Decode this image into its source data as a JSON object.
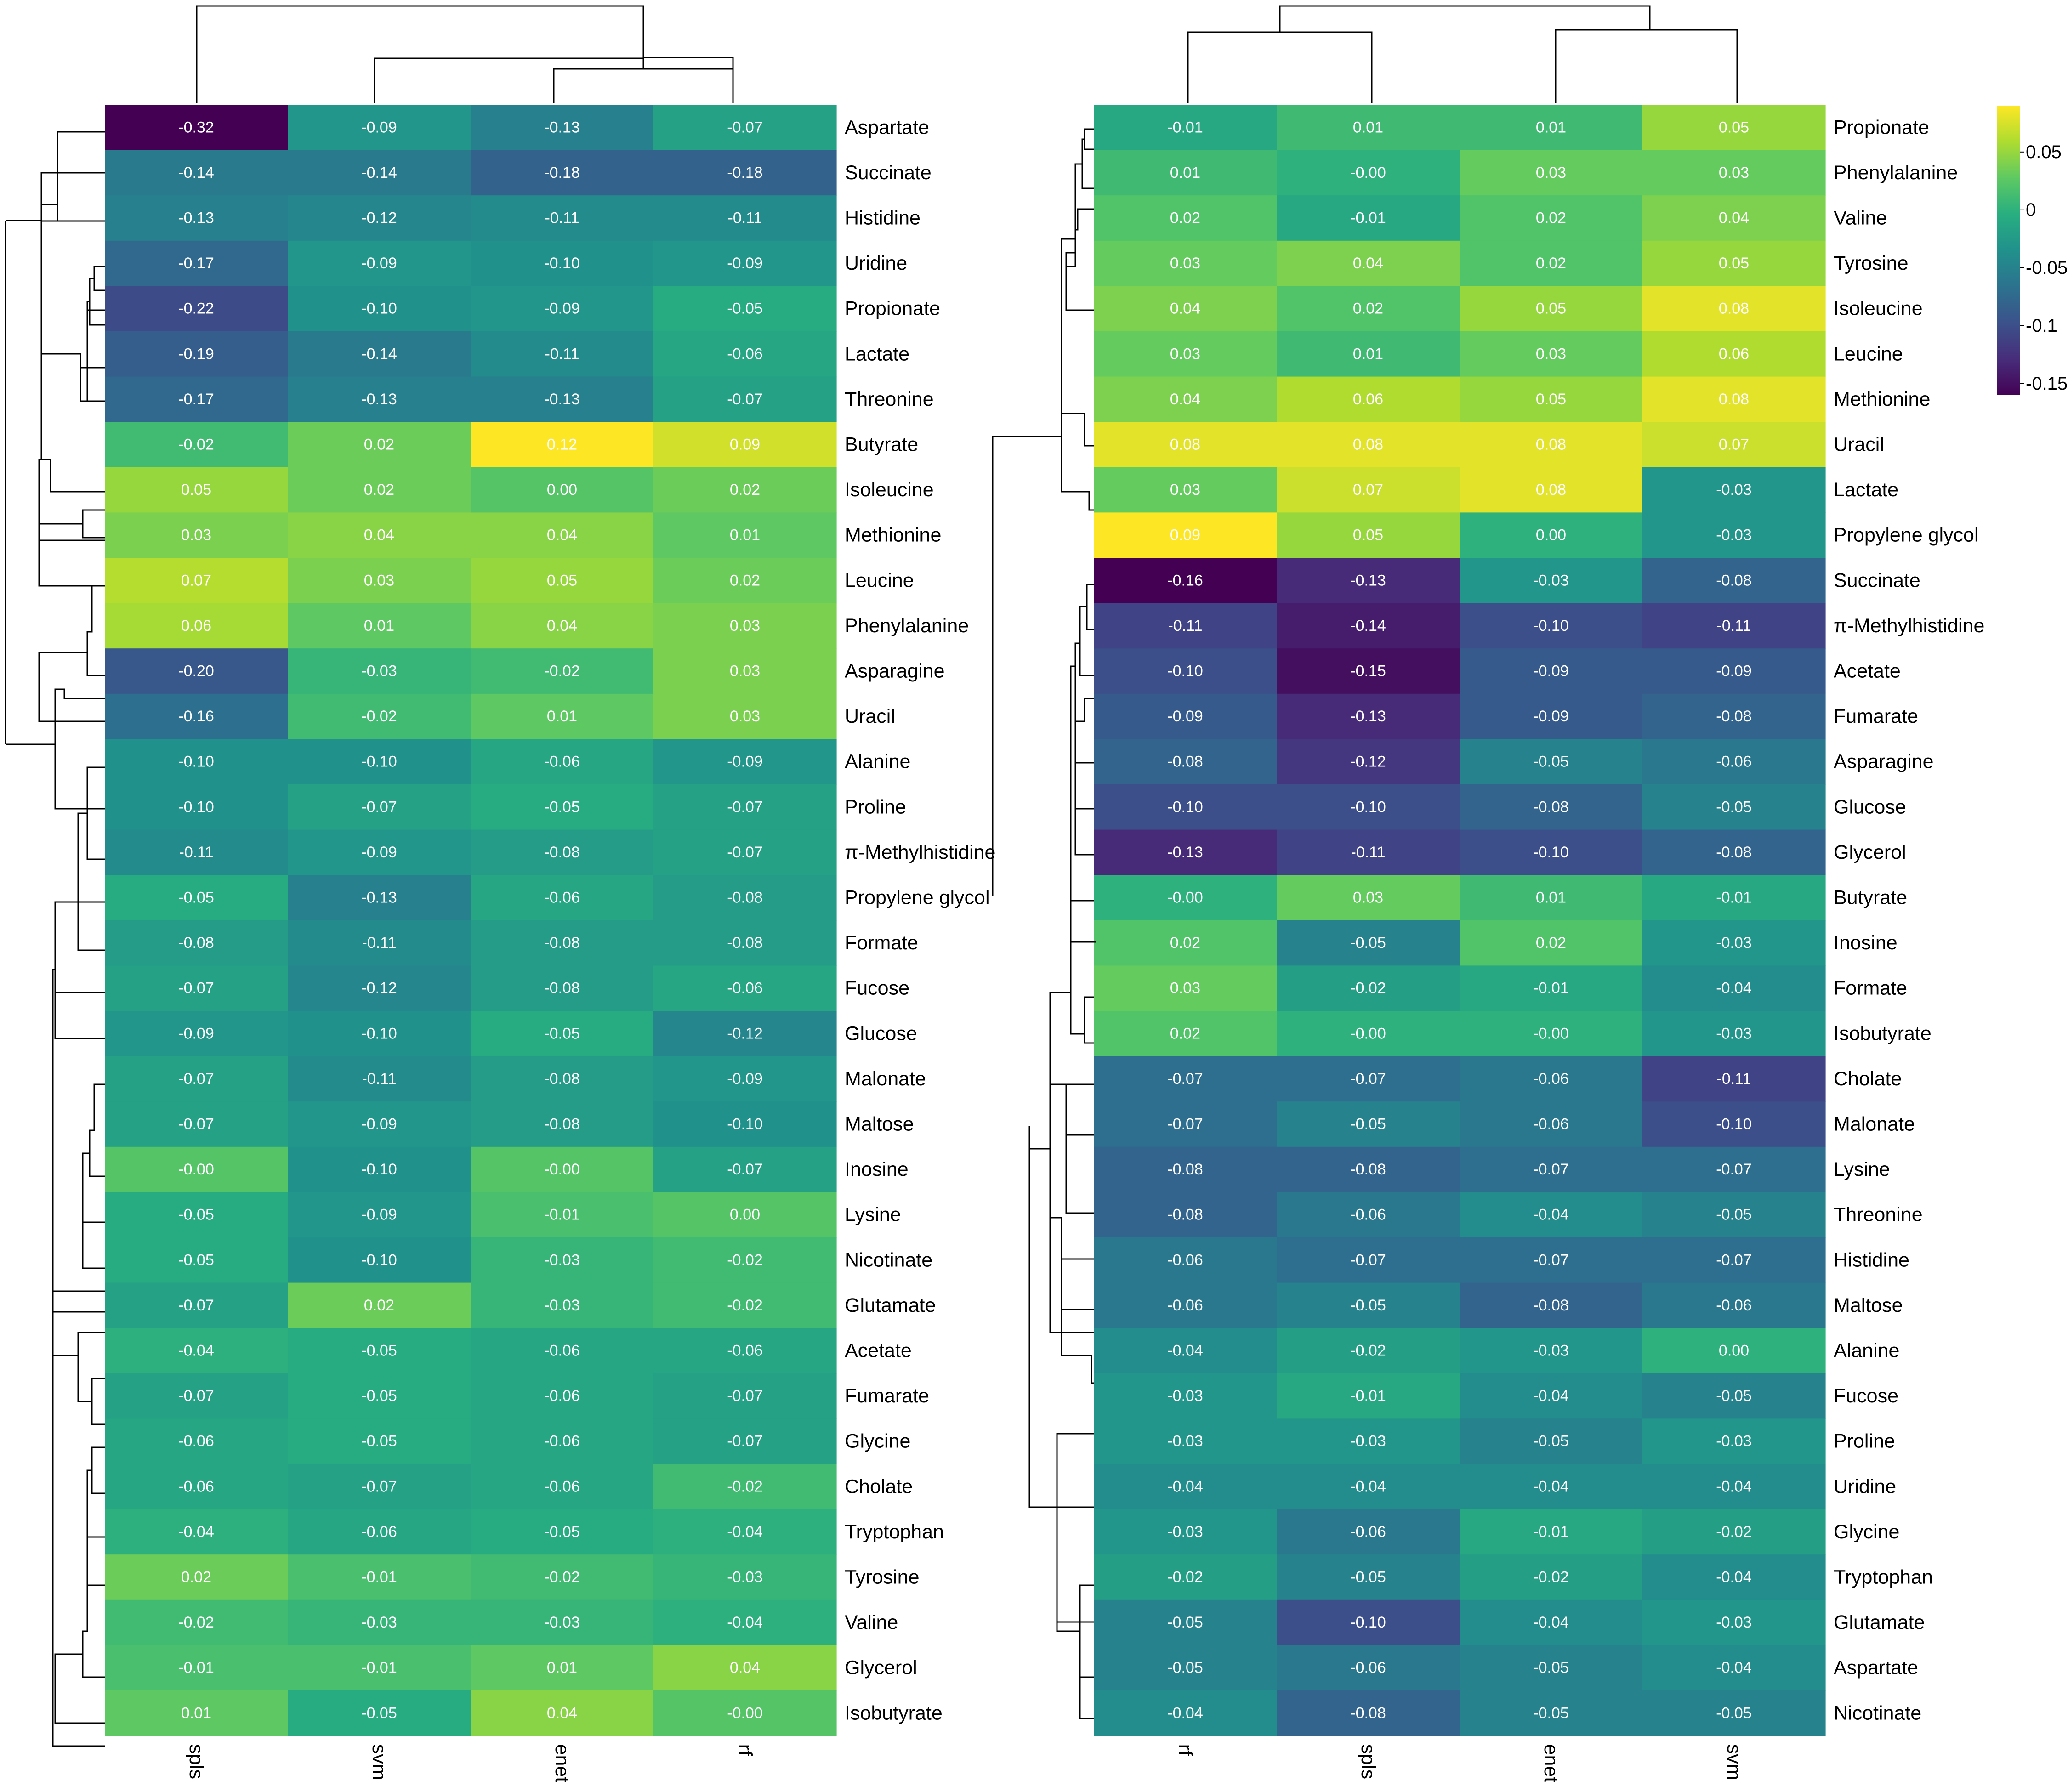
{
  "chart_data": [
    {
      "type": "heatmap",
      "columns": [
        "spls",
        "svm",
        "enet",
        "rf"
      ],
      "rows": [
        "Aspartate",
        "Succinate",
        "Histidine",
        "Uridine",
        "Propionate",
        "Lactate",
        "Threonine",
        "Butyrate",
        "Isoleucine",
        "Methionine",
        "Leucine",
        "Phenylalanine",
        "Asparagine",
        "Uracil",
        "Alanine",
        "Proline",
        "π-Methylhistidine",
        "Propylene glycol",
        "Formate",
        "Fucose",
        "Glucose",
        "Malonate",
        "Maltose",
        "Inosine",
        "Lysine",
        "Nicotinate",
        "Glutamate",
        "Acetate",
        "Fumarate",
        "Glycine",
        "Cholate",
        "Tryptophan",
        "Tyrosine",
        "Valine",
        "Glycerol",
        "Isobutyrate"
      ],
      "values": [
        [
          "-0.32",
          "-0.09",
          "-0.13",
          "-0.07"
        ],
        [
          "-0.14",
          "-0.14",
          "-0.18",
          "-0.18"
        ],
        [
          "-0.13",
          "-0.12",
          "-0.11",
          "-0.11"
        ],
        [
          "-0.17",
          "-0.09",
          "-0.10",
          "-0.09"
        ],
        [
          "-0.22",
          "-0.10",
          "-0.09",
          "-0.05"
        ],
        [
          "-0.19",
          "-0.14",
          "-0.11",
          "-0.06"
        ],
        [
          "-0.17",
          "-0.13",
          "-0.13",
          "-0.07"
        ],
        [
          "-0.02",
          "0.02",
          "0.12",
          "0.09"
        ],
        [
          "0.05",
          "0.02",
          "0.00",
          "0.02"
        ],
        [
          "0.03",
          "0.04",
          "0.04",
          "0.01"
        ],
        [
          "0.07",
          "0.03",
          "0.05",
          "0.02"
        ],
        [
          "0.06",
          "0.01",
          "0.04",
          "0.03"
        ],
        [
          "-0.20",
          "-0.03",
          "-0.02",
          "0.03"
        ],
        [
          "-0.16",
          "-0.02",
          "0.01",
          "0.03"
        ],
        [
          "-0.10",
          "-0.10",
          "-0.06",
          "-0.09"
        ],
        [
          "-0.10",
          "-0.07",
          "-0.05",
          "-0.07"
        ],
        [
          "-0.11",
          "-0.09",
          "-0.08",
          "-0.07"
        ],
        [
          "-0.05",
          "-0.13",
          "-0.06",
          "-0.08"
        ],
        [
          "-0.08",
          "-0.11",
          "-0.08",
          "-0.08"
        ],
        [
          "-0.07",
          "-0.12",
          "-0.08",
          "-0.06"
        ],
        [
          "-0.09",
          "-0.10",
          "-0.05",
          "-0.12"
        ],
        [
          "-0.07",
          "-0.11",
          "-0.08",
          "-0.09"
        ],
        [
          "-0.07",
          "-0.09",
          "-0.08",
          "-0.10"
        ],
        [
          "-0.00",
          "-0.10",
          "-0.00",
          "-0.07"
        ],
        [
          "-0.05",
          "-0.09",
          "-0.01",
          "0.00"
        ],
        [
          "-0.05",
          "-0.10",
          "-0.03",
          "-0.02"
        ],
        [
          "-0.07",
          "0.02",
          "-0.03",
          "-0.02"
        ],
        [
          "-0.04",
          "-0.05",
          "-0.06",
          "-0.06"
        ],
        [
          "-0.07",
          "-0.05",
          "-0.06",
          "-0.07"
        ],
        [
          "-0.06",
          "-0.05",
          "-0.06",
          "-0.07"
        ],
        [
          "-0.06",
          "-0.07",
          "-0.06",
          "-0.02"
        ],
        [
          "-0.04",
          "-0.06",
          "-0.05",
          "-0.04"
        ],
        [
          "0.02",
          "-0.01",
          "-0.02",
          "-0.03"
        ],
        [
          "-0.02",
          "-0.03",
          "-0.03",
          "-0.04"
        ],
        [
          "-0.01",
          "-0.01",
          "0.01",
          "0.04"
        ],
        [
          "0.01",
          "-0.05",
          "0.04",
          "-0.00"
        ]
      ],
      "color_scale": {
        "min": -0.32,
        "max": 0.12,
        "palette": "viridis"
      }
    },
    {
      "type": "heatmap",
      "columns": [
        "rf",
        "spls",
        "enet",
        "svm"
      ],
      "rows": [
        "Propionate",
        "Phenylalanine",
        "Valine",
        "Tyrosine",
        "Isoleucine",
        "Leucine",
        "Methionine",
        "Uracil",
        "Lactate",
        "Propylene glycol",
        "Succinate",
        "π-Methylhistidine",
        "Acetate",
        "Fumarate",
        "Asparagine",
        "Glucose",
        "Glycerol",
        "Butyrate",
        "Inosine",
        "Formate",
        "Isobutyrate",
        "Cholate",
        "Malonate",
        "Lysine",
        "Threonine",
        "Histidine",
        "Maltose",
        "Alanine",
        "Fucose",
        "Proline",
        "Uridine",
        "Glycine",
        "Tryptophan",
        "Glutamate",
        "Aspartate",
        "Nicotinate"
      ],
      "values": [
        [
          "-0.01",
          "0.01",
          "0.01",
          "0.05"
        ],
        [
          "0.01",
          "-0.00",
          "0.03",
          "0.03"
        ],
        [
          "0.02",
          "-0.01",
          "0.02",
          "0.04"
        ],
        [
          "0.03",
          "0.04",
          "0.02",
          "0.05"
        ],
        [
          "0.04",
          "0.02",
          "0.05",
          "0.08"
        ],
        [
          "0.03",
          "0.01",
          "0.03",
          "0.06"
        ],
        [
          "0.04",
          "0.06",
          "0.05",
          "0.08"
        ],
        [
          "0.08",
          "0.08",
          "0.08",
          "0.07"
        ],
        [
          "0.03",
          "0.07",
          "0.08",
          "-0.03"
        ],
        [
          "0.09",
          "0.05",
          "0.00",
          "-0.03"
        ],
        [
          "-0.16",
          "-0.13",
          "-0.03",
          "-0.08"
        ],
        [
          "-0.11",
          "-0.14",
          "-0.10",
          "-0.11"
        ],
        [
          "-0.10",
          "-0.15",
          "-0.09",
          "-0.09"
        ],
        [
          "-0.09",
          "-0.13",
          "-0.09",
          "-0.08"
        ],
        [
          "-0.08",
          "-0.12",
          "-0.05",
          "-0.06"
        ],
        [
          "-0.10",
          "-0.10",
          "-0.08",
          "-0.05"
        ],
        [
          "-0.13",
          "-0.11",
          "-0.10",
          "-0.08"
        ],
        [
          "-0.00",
          "0.03",
          "0.01",
          "-0.01"
        ],
        [
          "0.02",
          "-0.05",
          "0.02",
          "-0.03"
        ],
        [
          "0.03",
          "-0.02",
          "-0.01",
          "-0.04"
        ],
        [
          "0.02",
          "-0.00",
          "-0.00",
          "-0.03"
        ],
        [
          "-0.07",
          "-0.07",
          "-0.06",
          "-0.11"
        ],
        [
          "-0.07",
          "-0.05",
          "-0.06",
          "-0.10"
        ],
        [
          "-0.08",
          "-0.08",
          "-0.07",
          "-0.07"
        ],
        [
          "-0.08",
          "-0.06",
          "-0.04",
          "-0.05"
        ],
        [
          "-0.06",
          "-0.07",
          "-0.07",
          "-0.07"
        ],
        [
          "-0.06",
          "-0.05",
          "-0.08",
          "-0.06"
        ],
        [
          "-0.04",
          "-0.02",
          "-0.03",
          "0.00"
        ],
        [
          "-0.03",
          "-0.01",
          "-0.04",
          "-0.05"
        ],
        [
          "-0.03",
          "-0.03",
          "-0.05",
          "-0.03"
        ],
        [
          "-0.04",
          "-0.04",
          "-0.04",
          "-0.04"
        ],
        [
          "-0.03",
          "-0.06",
          "-0.01",
          "-0.02"
        ],
        [
          "-0.02",
          "-0.05",
          "-0.02",
          "-0.04"
        ],
        [
          "-0.05",
          "-0.10",
          "-0.04",
          "-0.03"
        ],
        [
          "-0.05",
          "-0.06",
          "-0.05",
          "-0.04"
        ],
        [
          "-0.04",
          "-0.08",
          "-0.05",
          "-0.05"
        ]
      ],
      "color_scale": {
        "min": -0.16,
        "max": 0.09,
        "palette": "viridis"
      },
      "legend": {
        "placement": "right",
        "ticks": [
          "0.05",
          "0",
          "-0.05",
          "-0.1",
          "-0.15"
        ],
        "tick_values": [
          0.05,
          0,
          -0.05,
          -0.1,
          -0.15
        ]
      }
    }
  ]
}
